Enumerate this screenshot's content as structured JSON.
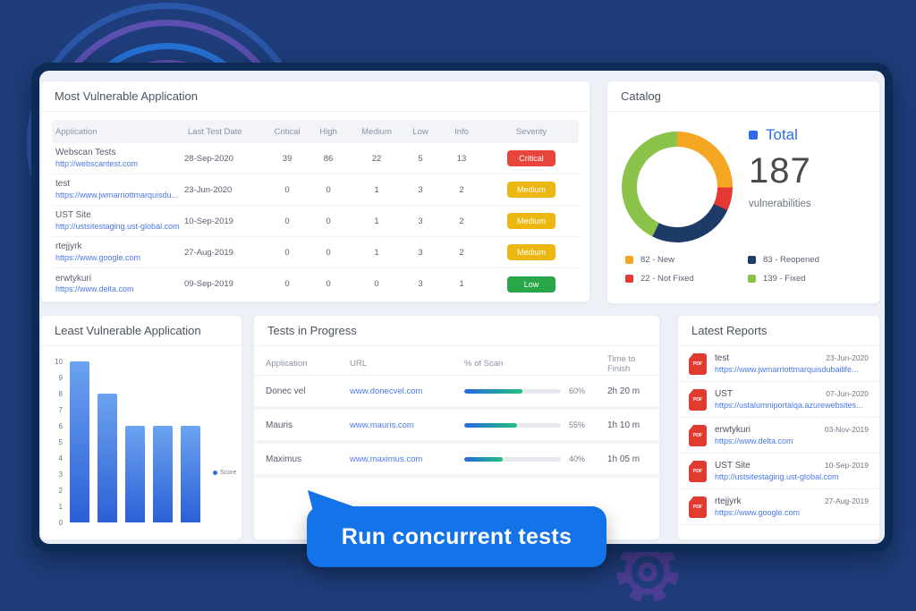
{
  "colors": {
    "background": "#1e3d7a",
    "frame_border": "#0e2b57",
    "accent_blue": "#2e6bf0",
    "callout_blue": "#1473e8",
    "link_blue": "#4b79e4",
    "severity": {
      "Critical": "#e8453d",
      "Medium": "#edb711",
      "Low": "#28a648"
    }
  },
  "most_vulnerable": {
    "title": "Most Vulnerable Application",
    "columns": [
      "Application",
      "Last Test Date",
      "Critical",
      "High",
      "Medium",
      "Low",
      "Info",
      "Severity"
    ],
    "rows": [
      {
        "name": "Webscan Tests",
        "url": "http://webscantest.com",
        "date": "28-Sep-2020",
        "critical": "39",
        "high": "86",
        "medium": "22",
        "low": "5",
        "info": "13",
        "severity": "Critical"
      },
      {
        "name": "test",
        "url": "https://www.jwmarriottmarquisdu...",
        "date": "23-Jun-2020",
        "critical": "0",
        "high": "0",
        "medium": "1",
        "low": "3",
        "info": "2",
        "severity": "Medium"
      },
      {
        "name": "UST Site",
        "url": "http://ustsitestaging.ust-global.com",
        "date": "10-Sep-2019",
        "critical": "0",
        "high": "0",
        "medium": "1",
        "low": "3",
        "info": "2",
        "severity": "Medium"
      },
      {
        "name": "rtejjyrk",
        "url": "https://www.google.com",
        "date": "27-Aug-2019",
        "critical": "0",
        "high": "0",
        "medium": "1",
        "low": "3",
        "info": "2",
        "severity": "Medium"
      },
      {
        "name": "erwtykuri",
        "url": "https://www.delta.com",
        "date": "09-Sep-2019",
        "critical": "0",
        "high": "0",
        "medium": "0",
        "low": "3",
        "info": "1",
        "severity": "Low"
      }
    ]
  },
  "catalog": {
    "title": "Catalog",
    "total_label": "Total",
    "total_value": "187",
    "total_sub": "vulnerabilities"
  },
  "least_vulnerable": {
    "title": "Least Vulnerable Application",
    "legend": "Score"
  },
  "tests_in_progress": {
    "title": "Tests in Progress",
    "columns": [
      "Application",
      "URL",
      "% of Scan",
      "Time to Finish"
    ],
    "rows": [
      {
        "app": "Donec vel",
        "url": "www.donecvel.com",
        "percent": 60,
        "time": "2h 20 m"
      },
      {
        "app": "Mauris",
        "url": "www.mauris.com",
        "percent": 55,
        "time": "1h 10 m"
      },
      {
        "app": "Maximus",
        "url": "www.maximus.com",
        "percent": 40,
        "time": "1h 05 m"
      }
    ]
  },
  "latest_reports": {
    "title": "Latest Reports",
    "pdf_icon_label": "PDF",
    "rows": [
      {
        "name": "test",
        "date": "23-Jun-2020",
        "url": "https://www.jwmarriottmarquisdubailife..."
      },
      {
        "name": "UST",
        "date": "07-Jun-2020",
        "url": "https://ustalumniportalqa.azurewebsites..."
      },
      {
        "name": "erwtykuri",
        "date": "03-Nov-2019",
        "url": "https://www.delta.com"
      },
      {
        "name": "UST Site",
        "date": "10-Sep-2019",
        "url": "http://ustsitestaging.ust-global.com"
      },
      {
        "name": "rtejjyrk",
        "date": "27-Aug-2019",
        "url": "https://www.google.com"
      }
    ]
  },
  "callout": {
    "label": "Run concurrent tests"
  },
  "chart_data": [
    {
      "type": "pie",
      "donut": true,
      "title": "Catalog",
      "center_label": "Total",
      "center_value": 187,
      "center_unit": "vulnerabilities",
      "start_angle_deg": 0,
      "direction": "clockwise",
      "segments": [
        {
          "label": "New",
          "value": 82,
          "color": "#f5a623"
        },
        {
          "label": "Not Fixed",
          "value": 22,
          "color": "#e53935"
        },
        {
          "label": "Reopened",
          "value": 83,
          "color": "#1e3a66"
        },
        {
          "label": "Fixed",
          "value": 139,
          "color": "#8bc34a"
        }
      ],
      "legend_order": [
        0,
        2,
        1,
        3
      ],
      "legend_position": "bottom-two-columns"
    },
    {
      "type": "bar",
      "title": "Least Vulnerable Application",
      "categories": [
        "",
        "",
        "",
        "",
        ""
      ],
      "series": [
        {
          "name": "Score",
          "values": [
            10,
            8,
            6,
            6,
            6
          ],
          "color": "#3f74dd"
        }
      ],
      "ylim": [
        0,
        10
      ],
      "yticks": [
        0,
        1,
        2,
        3,
        4,
        5,
        6,
        7,
        8,
        9,
        10
      ],
      "grid": false,
      "legend_position": "middle-right"
    }
  ]
}
